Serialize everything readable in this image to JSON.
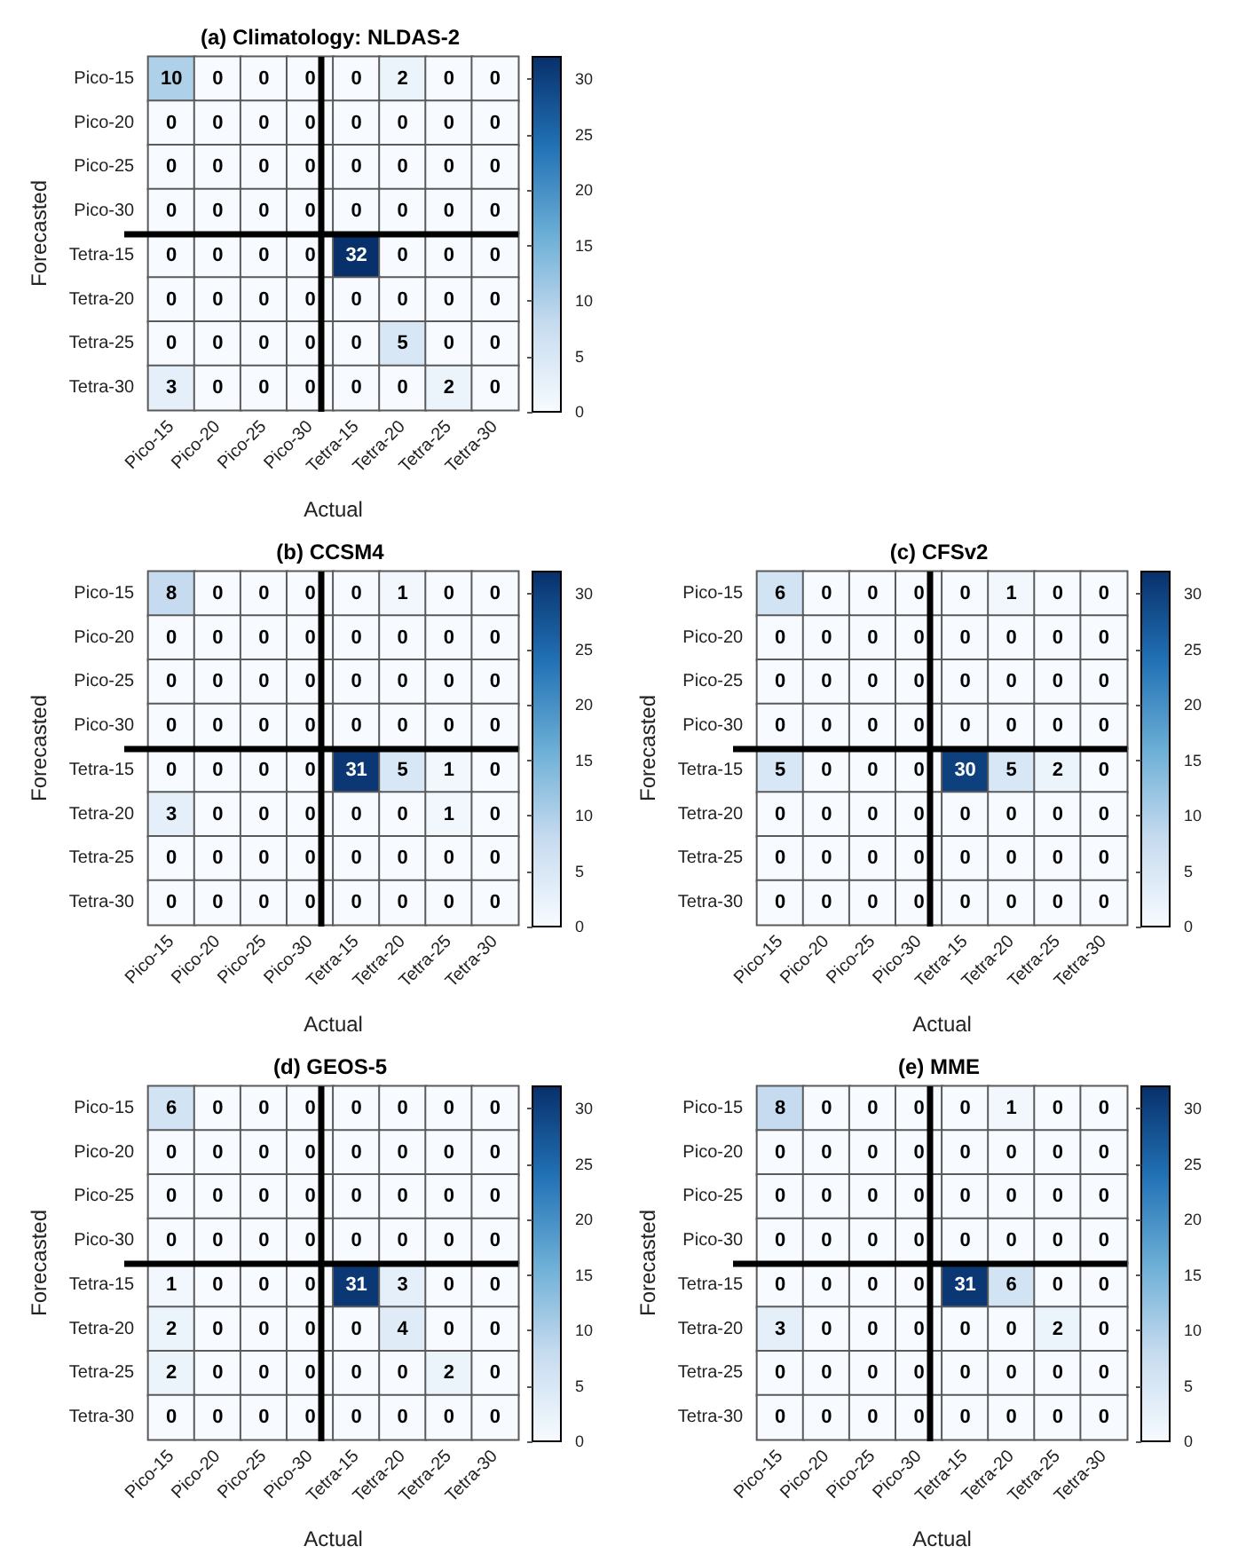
{
  "chart_data": [
    {
      "type": "heatmap",
      "title": "(a) Climatology: NLDAS-2",
      "xlabel": "Actual",
      "ylabel": "Forecasted",
      "categories": [
        "Pico-15",
        "Pico-20",
        "Pico-25",
        "Pico-30",
        "Tetra-15",
        "Tetra-20",
        "Tetra-25",
        "Tetra-30"
      ],
      "y_categories": [
        "Pico-15",
        "Pico-20",
        "Pico-25",
        "Pico-30",
        "Tetra-15",
        "Tetra-20",
        "Tetra-25",
        "Tetra-30"
      ],
      "cells": [
        [
          10,
          0,
          0,
          0,
          0,
          2,
          0,
          0
        ],
        [
          0,
          0,
          0,
          0,
          0,
          0,
          0,
          0
        ],
        [
          0,
          0,
          0,
          0,
          0,
          0,
          0,
          0
        ],
        [
          0,
          0,
          0,
          0,
          0,
          0,
          0,
          0
        ],
        [
          0,
          0,
          0,
          0,
          32,
          0,
          0,
          0
        ],
        [
          0,
          0,
          0,
          0,
          0,
          0,
          0,
          0
        ],
        [
          0,
          0,
          0,
          0,
          0,
          5,
          0,
          0
        ],
        [
          3,
          0,
          0,
          0,
          0,
          0,
          2,
          0
        ]
      ],
      "clim": [
        0,
        32
      ],
      "cticks": [
        0,
        5,
        10,
        15,
        20,
        25,
        30
      ],
      "data_labels": true
    },
    {
      "type": "heatmap",
      "title": "(b) CCSM4",
      "xlabel": "Actual",
      "ylabel": "Forecasted",
      "categories": [
        "Pico-15",
        "Pico-20",
        "Pico-25",
        "Pico-30",
        "Tetra-15",
        "Tetra-20",
        "Tetra-25",
        "Tetra-30"
      ],
      "y_categories": [
        "Pico-15",
        "Pico-20",
        "Pico-25",
        "Pico-30",
        "Tetra-15",
        "Tetra-20",
        "Tetra-25",
        "Tetra-30"
      ],
      "cells": [
        [
          8,
          0,
          0,
          0,
          0,
          1,
          0,
          0
        ],
        [
          0,
          0,
          0,
          0,
          0,
          0,
          0,
          0
        ],
        [
          0,
          0,
          0,
          0,
          0,
          0,
          0,
          0
        ],
        [
          0,
          0,
          0,
          0,
          0,
          0,
          0,
          0
        ],
        [
          0,
          0,
          0,
          0,
          31,
          5,
          1,
          0
        ],
        [
          3,
          0,
          0,
          0,
          0,
          0,
          1,
          0
        ],
        [
          0,
          0,
          0,
          0,
          0,
          0,
          0,
          0
        ],
        [
          0,
          0,
          0,
          0,
          0,
          0,
          0,
          0
        ]
      ],
      "clim": [
        0,
        32
      ],
      "cticks": [
        0,
        5,
        10,
        15,
        20,
        25,
        30
      ],
      "data_labels": true
    },
    {
      "type": "heatmap",
      "title": "(c) CFSv2",
      "xlabel": "Actual",
      "ylabel": "Forecasted",
      "categories": [
        "Pico-15",
        "Pico-20",
        "Pico-25",
        "Pico-30",
        "Tetra-15",
        "Tetra-20",
        "Tetra-25",
        "Tetra-30"
      ],
      "y_categories": [
        "Pico-15",
        "Pico-20",
        "Pico-25",
        "Pico-30",
        "Tetra-15",
        "Tetra-20",
        "Tetra-25",
        "Tetra-30"
      ],
      "cells": [
        [
          6,
          0,
          0,
          0,
          0,
          1,
          0,
          0
        ],
        [
          0,
          0,
          0,
          0,
          0,
          0,
          0,
          0
        ],
        [
          0,
          0,
          0,
          0,
          0,
          0,
          0,
          0
        ],
        [
          0,
          0,
          0,
          0,
          0,
          0,
          0,
          0
        ],
        [
          5,
          0,
          0,
          0,
          30,
          5,
          2,
          0
        ],
        [
          0,
          0,
          0,
          0,
          0,
          0,
          0,
          0
        ],
        [
          0,
          0,
          0,
          0,
          0,
          0,
          0,
          0
        ],
        [
          0,
          0,
          0,
          0,
          0,
          0,
          0,
          0
        ]
      ],
      "clim": [
        0,
        32
      ],
      "cticks": [
        0,
        5,
        10,
        15,
        20,
        25,
        30
      ],
      "data_labels": true
    },
    {
      "type": "heatmap",
      "title": "(d) GEOS-5",
      "xlabel": "Actual",
      "ylabel": "Forecasted",
      "categories": [
        "Pico-15",
        "Pico-20",
        "Pico-25",
        "Pico-30",
        "Tetra-15",
        "Tetra-20",
        "Tetra-25",
        "Tetra-30"
      ],
      "y_categories": [
        "Pico-15",
        "Pico-20",
        "Pico-25",
        "Pico-30",
        "Tetra-15",
        "Tetra-20",
        "Tetra-25",
        "Tetra-30"
      ],
      "cells": [
        [
          6,
          0,
          0,
          0,
          0,
          0,
          0,
          0
        ],
        [
          0,
          0,
          0,
          0,
          0,
          0,
          0,
          0
        ],
        [
          0,
          0,
          0,
          0,
          0,
          0,
          0,
          0
        ],
        [
          0,
          0,
          0,
          0,
          0,
          0,
          0,
          0
        ],
        [
          1,
          0,
          0,
          0,
          31,
          3,
          0,
          0
        ],
        [
          2,
          0,
          0,
          0,
          0,
          4,
          0,
          0
        ],
        [
          2,
          0,
          0,
          0,
          0,
          0,
          2,
          0
        ],
        [
          0,
          0,
          0,
          0,
          0,
          0,
          0,
          0
        ]
      ],
      "clim": [
        0,
        32
      ],
      "cticks": [
        0,
        5,
        10,
        15,
        20,
        25,
        30
      ],
      "data_labels": true
    },
    {
      "type": "heatmap",
      "title": "(e) MME",
      "xlabel": "Actual",
      "ylabel": "Forecasted",
      "categories": [
        "Pico-15",
        "Pico-20",
        "Pico-25",
        "Pico-30",
        "Tetra-15",
        "Tetra-20",
        "Tetra-25",
        "Tetra-30"
      ],
      "y_categories": [
        "Pico-15",
        "Pico-20",
        "Pico-25",
        "Pico-30",
        "Tetra-15",
        "Tetra-20",
        "Tetra-25",
        "Tetra-30"
      ],
      "cells": [
        [
          8,
          0,
          0,
          0,
          0,
          1,
          0,
          0
        ],
        [
          0,
          0,
          0,
          0,
          0,
          0,
          0,
          0
        ],
        [
          0,
          0,
          0,
          0,
          0,
          0,
          0,
          0
        ],
        [
          0,
          0,
          0,
          0,
          0,
          0,
          0,
          0
        ],
        [
          0,
          0,
          0,
          0,
          31,
          6,
          0,
          0
        ],
        [
          3,
          0,
          0,
          0,
          0,
          0,
          2,
          0
        ],
        [
          0,
          0,
          0,
          0,
          0,
          0,
          0,
          0
        ],
        [
          0,
          0,
          0,
          0,
          0,
          0,
          0,
          0
        ]
      ],
      "clim": [
        0,
        32
      ],
      "cticks": [
        0,
        5,
        10,
        15,
        20,
        25,
        30
      ],
      "data_labels": true
    }
  ]
}
